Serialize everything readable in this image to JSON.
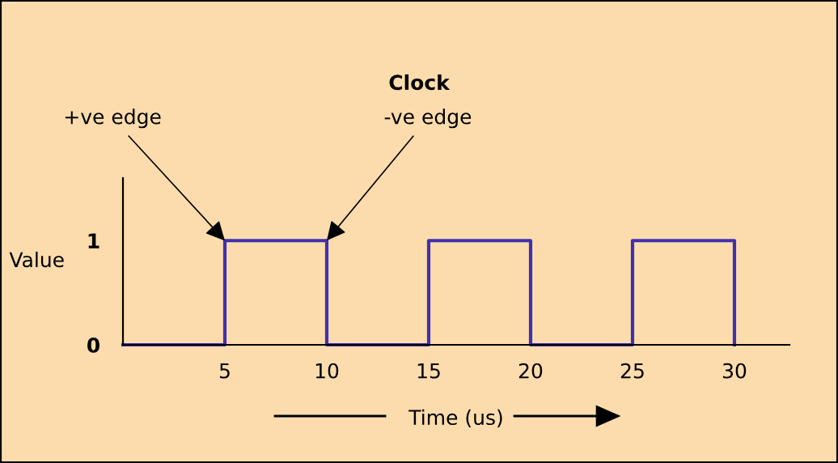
{
  "chart_data": {
    "type": "step",
    "title": "Clock",
    "xlabel": "Time (us)",
    "ylabel": "Value",
    "x": [
      0,
      5,
      10,
      15,
      20,
      25,
      30
    ],
    "series": [
      {
        "color": "#4030b0",
        "values": [
          0,
          1,
          0,
          1,
          0,
          1,
          0
        ]
      }
    ],
    "xlim": [
      0,
      32.7
    ],
    "xticks": [
      5,
      10,
      15,
      20,
      25,
      30
    ],
    "ylim": [
      0,
      1.6
    ],
    "yticks": [
      0,
      1
    ],
    "grid": false,
    "legend": false,
    "marker": "none",
    "line_style": "solid",
    "annotations": [
      {
        "text": "+ve edge",
        "x": 5,
        "y": 1
      },
      {
        "text": "-ve edge",
        "x": 10,
        "y": 1
      }
    ]
  }
}
